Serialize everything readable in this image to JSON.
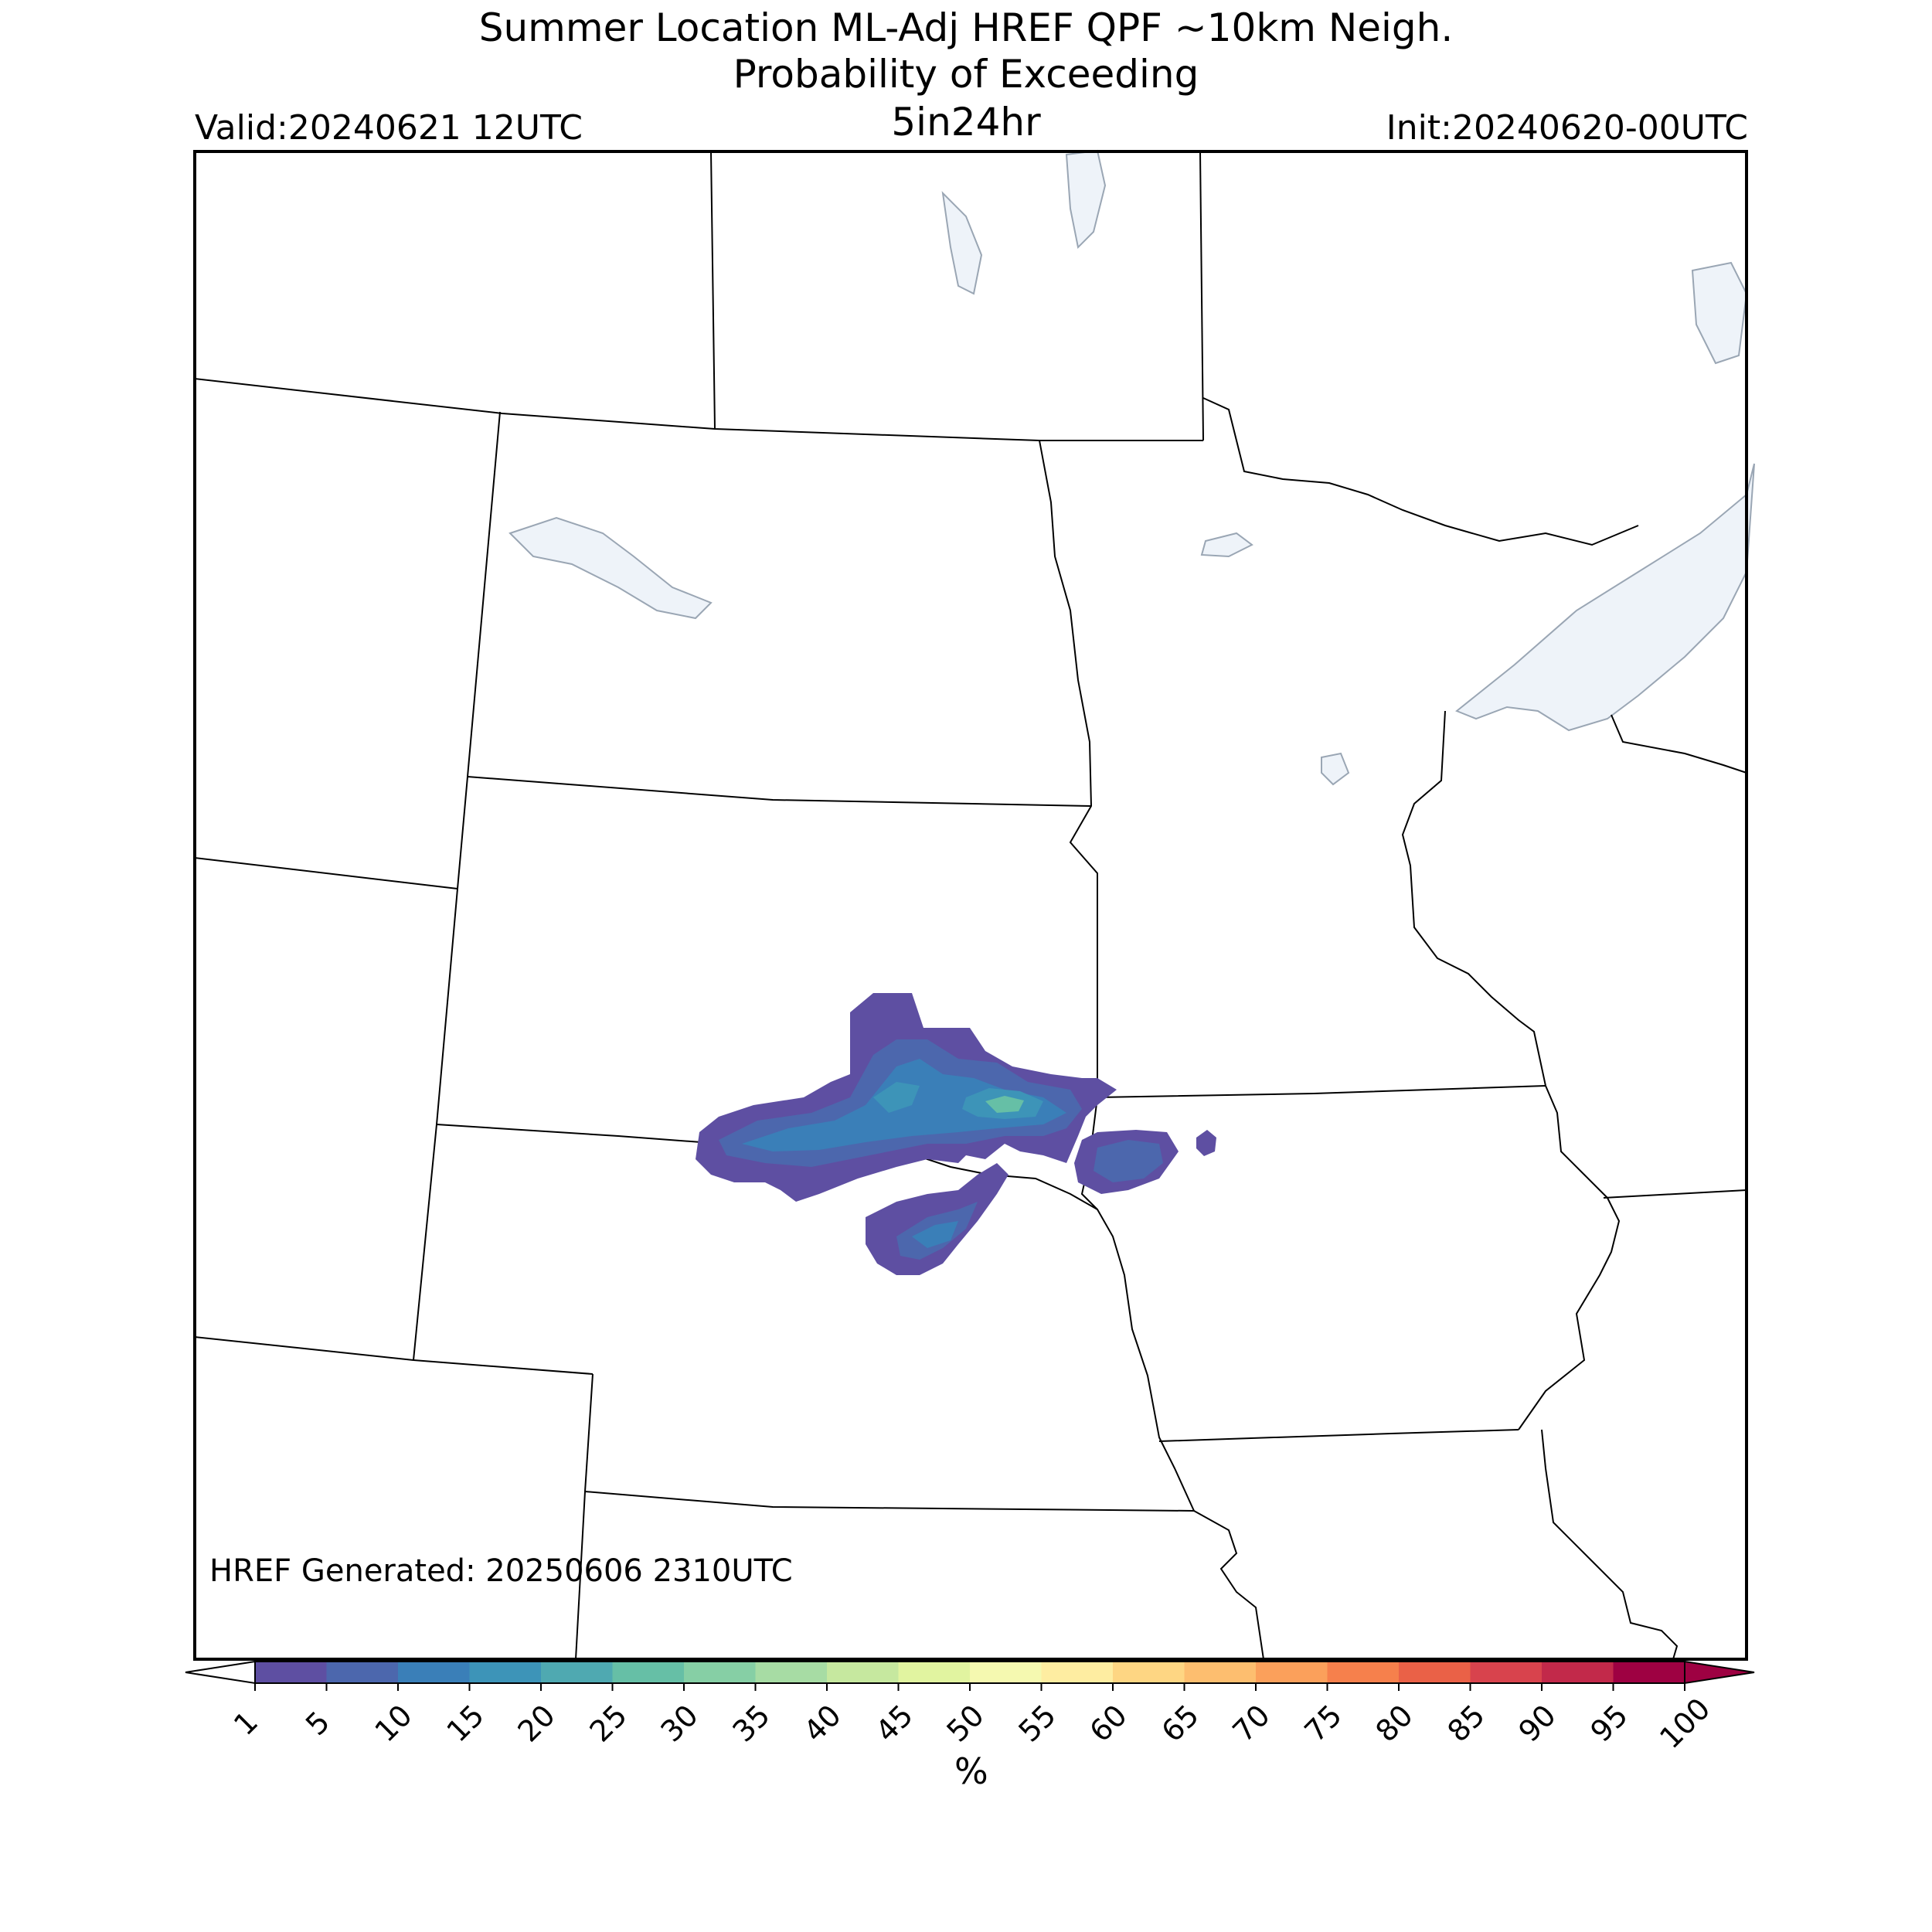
{
  "header": {
    "title_line1": "Summer Location ML-Adj HREF QPF ~10km Neigh.",
    "title_line2": "Probability of Exceeding",
    "title_line3": "5in24hr",
    "valid": "Valid:20240621 12UTC",
    "init": "Init:20240620-00UTC"
  },
  "map": {
    "generated": "HREF Generated: 20250606 2310UTC",
    "water_color": "#eef3f9",
    "border_color": "#000000"
  },
  "colorbar": {
    "unit": "%",
    "ticks": [
      "1",
      "5",
      "10",
      "15",
      "20",
      "25",
      "30",
      "35",
      "40",
      "45",
      "50",
      "55",
      "60",
      "65",
      "70",
      "75",
      "80",
      "85",
      "90",
      "95",
      "100"
    ],
    "colors": [
      "#5e4fa2",
      "#4c67ad",
      "#3a7fb8",
      "#3d94b8",
      "#4fa9b1",
      "#66bfa6",
      "#86cfa5",
      "#a7dca4",
      "#c6e89f",
      "#e1f4a0",
      "#f5f9b0",
      "#feeda1",
      "#fed683",
      "#fdbe6f",
      "#fba05b",
      "#f6804c",
      "#ea6147",
      "#d8434d",
      "#c2294a",
      "#9e0142"
    ]
  }
}
